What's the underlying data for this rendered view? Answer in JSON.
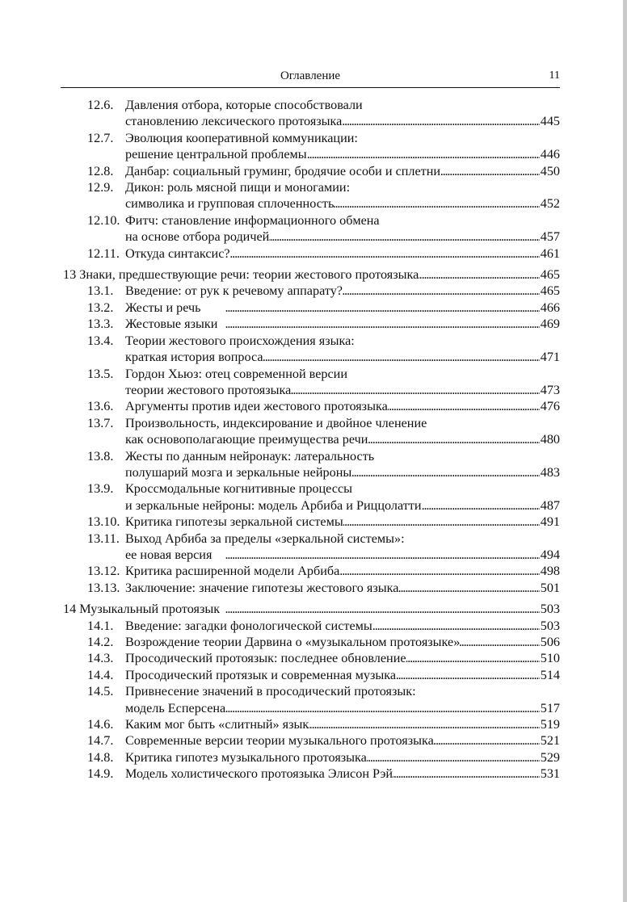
{
  "header": {
    "title": "Оглавление",
    "page_number": "11"
  },
  "groups": [
    {
      "chapter": null,
      "sections": [
        {
          "num": "12.6.",
          "lines": [
            "Давления отбора, которые способствовали",
            "становлению лексического протоязыка"
          ],
          "page": "445"
        },
        {
          "num": "12.7.",
          "lines": [
            "Эволюция кооперативной коммуникации:",
            "решение центральной проблемы"
          ],
          "page": "446"
        },
        {
          "num": "12.8.",
          "lines": [
            "Данбар: социальный груминг, бродячие особи и сплетни"
          ],
          "page": "450"
        },
        {
          "num": "12.9.",
          "lines": [
            "Дикон: роль мясной пищи и моногамии:",
            "символика и групповая сплоченность"
          ],
          "page": "452"
        },
        {
          "num": "12.10.",
          "lines": [
            "Фитч: становление информационного обмена",
            "на основе отбора родичей"
          ],
          "page": "457"
        },
        {
          "num": "12.11.",
          "lines": [
            "Откуда синтаксис?"
          ],
          "page": "461"
        }
      ]
    },
    {
      "chapter": {
        "title": "13 Знаки, предшествующие речи: теории жестового протоязыка",
        "page": "465"
      },
      "sections": [
        {
          "num": "13.1.",
          "lines": [
            "Введение: от рук к речевому аппарату?"
          ],
          "page": "465"
        },
        {
          "num": "13.2.",
          "lines": [
            "Жесты и речь"
          ],
          "page": "466"
        },
        {
          "num": "13.3.",
          "lines": [
            "Жестовые языки"
          ],
          "page": "469"
        },
        {
          "num": "13.4.",
          "lines": [
            "Теории жестового происхождения языка:",
            "краткая история вопроса"
          ],
          "page": "471"
        },
        {
          "num": "13.5.",
          "lines": [
            "Гордон Хьюз: отец современной версии",
            "теории жестового протоязыка"
          ],
          "page": "473"
        },
        {
          "num": "13.6.",
          "lines": [
            "Аргументы против идеи жестового протоязыка"
          ],
          "page": "476"
        },
        {
          "num": "13.7.",
          "lines": [
            "Произвольность, индексирование и двойное членение",
            "как основополагающие преимущества речи"
          ],
          "page": "480"
        },
        {
          "num": "13.8.",
          "lines": [
            "Жесты по данным нейронаук: латеральность",
            "полушарий мозга и зеркальные нейроны"
          ],
          "page": "483"
        },
        {
          "num": "13.9.",
          "lines": [
            "Кроссмодальные когнитивные процессы",
            "и зеркальные нейроны: модель Арбиба и Риццолатти"
          ],
          "page": "487"
        },
        {
          "num": "13.10.",
          "lines": [
            "Критика гипотезы зеркальной системы"
          ],
          "page": "491"
        },
        {
          "num": "13.11.",
          "lines": [
            "Выход Арбиба за пределы «зеркальной системы»:",
            "ее новая версия"
          ],
          "page": "494"
        },
        {
          "num": "13.12.",
          "lines": [
            "Критика расширенной модели Арбиба"
          ],
          "page": "498"
        },
        {
          "num": "13.13.",
          "lines": [
            "Заключение: значение гипотезы жестового языка"
          ],
          "page": "501"
        }
      ]
    },
    {
      "chapter": {
        "title": "14 Музыкальный протоязык",
        "page": "503"
      },
      "sections": [
        {
          "num": "14.1.",
          "lines": [
            "Введение: загадки фонологической системы"
          ],
          "page": "503"
        },
        {
          "num": "14.2.",
          "lines": [
            "Возрождение теории Дарвина о «музыкальном протоязыке»"
          ],
          "page": "506"
        },
        {
          "num": "14.3.",
          "lines": [
            "Просодический  протоязык: последнее обновление"
          ],
          "page": "510"
        },
        {
          "num": "14.4.",
          "lines": [
            "Просодический протязык и современная музыка"
          ],
          "page": "514"
        },
        {
          "num": "14.5.",
          "lines": [
            "Привнесение значений в просодический протоязык:",
            "модель Есперсена"
          ],
          "page": "517"
        },
        {
          "num": "14.6.",
          "lines": [
            "Каким мог быть «слитный» язык"
          ],
          "page": "519"
        },
        {
          "num": "14.7.",
          "lines": [
            "Современные версии теории музыкального протоязыка"
          ],
          "page": "521"
        },
        {
          "num": "14.8.",
          "lines": [
            "Критика гипотез музыкального протоязыка"
          ],
          "page": "529"
        },
        {
          "num": "14.9.",
          "lines": [
            "Модель холистического протоязыка Элисон Рэй"
          ],
          "page": "531"
        }
      ]
    }
  ]
}
